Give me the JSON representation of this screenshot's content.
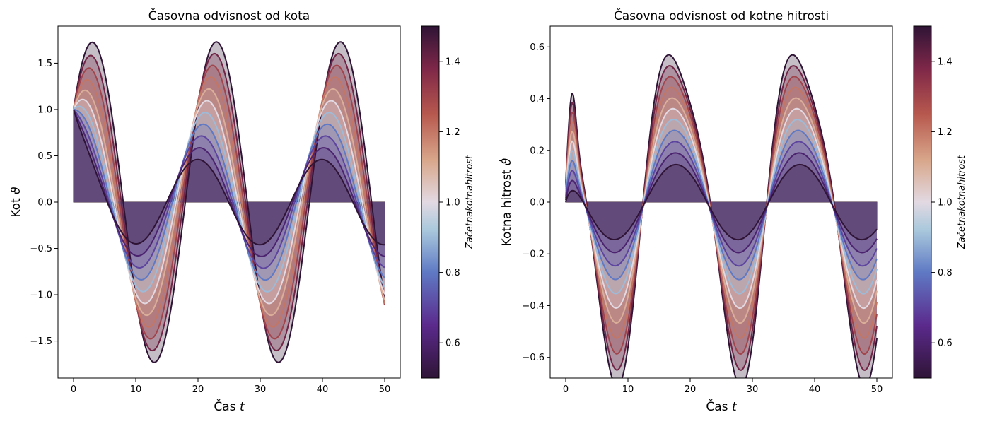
{
  "chart_data": [
    {
      "type": "line",
      "title": "Časovna odvisnost od kota",
      "xlabel_text": "Čas",
      "xlabel_symbol": "t",
      "ylabel_text": "Kot",
      "ylabel_symbol": "ϑ",
      "xlim": [
        -2.5,
        52.5
      ],
      "ylim": [
        -1.9,
        1.9
      ],
      "xticks": [
        0,
        10,
        20,
        30,
        40,
        50
      ],
      "xtick_labels": [
        "0",
        "10",
        "20",
        "30",
        "40",
        "50"
      ],
      "yticks": [
        -1.5,
        -1.0,
        -0.5,
        0.0,
        0.5,
        1.0,
        1.5
      ],
      "ytick_labels": [
        "−1.5",
        "−1.0",
        "−0.5",
        "0.0",
        "0.5",
        "1.0",
        "1.5"
      ],
      "grid": false,
      "x_range": [
        0,
        50
      ],
      "initial_angle": 1.0,
      "initial_velocities": [
        1.5,
        1.4,
        1.3,
        1.2,
        1.1,
        1.0,
        0.9,
        0.8,
        0.7,
        0.6,
        0.5
      ],
      "series_shape": "angle",
      "zero_fill_color": "#6b3a4e",
      "colorbar": {
        "label": "Začetnakotnahitrost",
        "range": [
          0.5,
          1.5
        ],
        "ticks": [
          0.6,
          0.8,
          1.0,
          1.2,
          1.4
        ],
        "tick_labels": [
          "0.6",
          "0.8",
          "1.0",
          "1.2",
          "1.4"
        ],
        "colormap": "twilight_shifted"
      }
    },
    {
      "type": "line",
      "title": "Časovna odvisnost od kotne hitrosti",
      "xlabel_text": "Čas",
      "xlabel_symbol": "t",
      "ylabel_text": "Kotna hitrost",
      "ylabel_symbol": "ϑ̇",
      "xlim": [
        -2.5,
        52.5
      ],
      "ylim": [
        -0.68,
        0.68
      ],
      "xticks": [
        0,
        10,
        20,
        30,
        40,
        50
      ],
      "xtick_labels": [
        "0",
        "10",
        "20",
        "30",
        "40",
        "50"
      ],
      "yticks": [
        -0.6,
        -0.4,
        -0.2,
        0.0,
        0.2,
        0.4,
        0.6
      ],
      "ytick_labels": [
        "−0.6",
        "−0.4",
        "−0.2",
        "0.0",
        "0.2",
        "0.4",
        "0.6"
      ],
      "grid": false,
      "x_range": [
        0,
        50
      ],
      "initial_angle": 1.0,
      "initial_velocities": [
        1.5,
        1.4,
        1.3,
        1.2,
        1.1,
        1.0,
        0.9,
        0.8,
        0.7,
        0.6,
        0.5
      ],
      "series_shape": "velocity",
      "zero_fill_color": "#6b3a4e",
      "colorbar": {
        "label": "Začetnakotnahitrost",
        "range": [
          0.5,
          1.5
        ],
        "ticks": [
          0.6,
          0.8,
          1.0,
          1.2,
          1.4
        ],
        "tick_labels": [
          "0.6",
          "0.8",
          "1.0",
          "1.2",
          "1.4"
        ],
        "colormap": "twilight_shifted"
      }
    }
  ]
}
